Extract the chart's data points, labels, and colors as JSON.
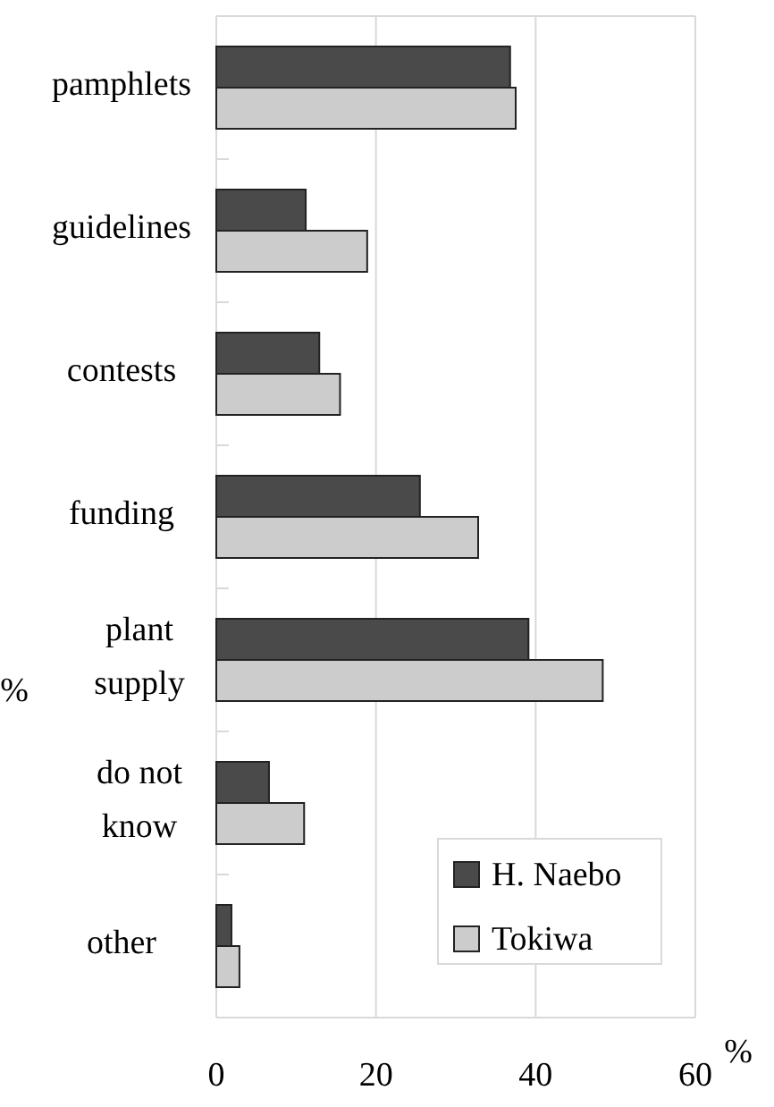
{
  "chart_data": {
    "type": "bar",
    "orientation": "horizontal",
    "categories": [
      "pamphlets",
      "guidelines",
      "contests",
      "funding",
      "plant supply",
      "do not know",
      "other"
    ],
    "series": [
      {
        "name": "H. Naebo",
        "color": "#4a4a4a",
        "values": [
          36.8,
          11.2,
          12.9,
          25.5,
          39.1,
          6.6,
          1.9
        ]
      },
      {
        "name": "Tokiwa",
        "color": "#cccccc",
        "values": [
          37.5,
          18.9,
          15.5,
          32.8,
          48.4,
          11,
          2.9
        ]
      }
    ],
    "xlim": [
      0,
      60
    ],
    "xticks": [
      0,
      20,
      40,
      60
    ],
    "xlabel": "%",
    "ylabel": "%",
    "grid": "x",
    "legend": "bottom right"
  }
}
